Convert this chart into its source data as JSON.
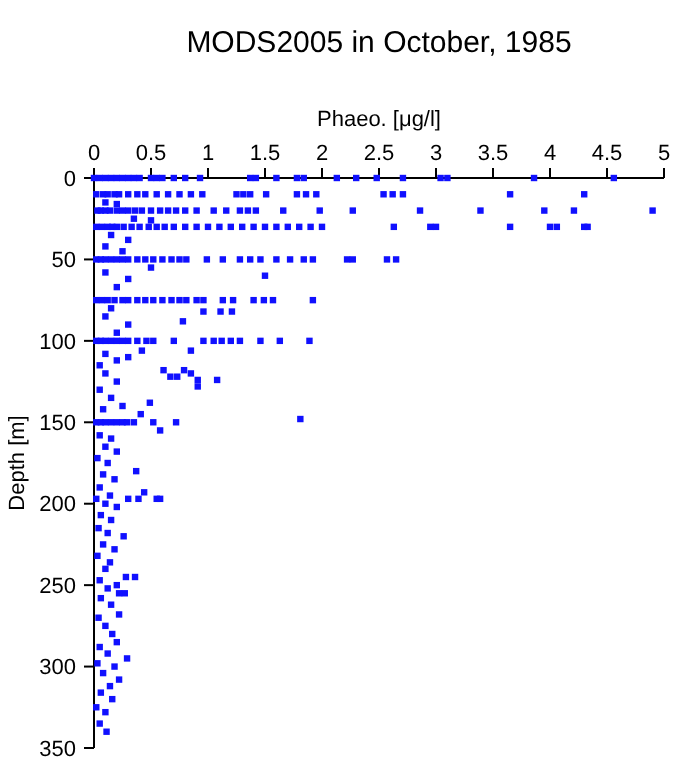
{
  "chart_data": {
    "type": "scatter",
    "title": "MODS2005 in October, 1985",
    "xlabel": "Phaeo. [μg/l]",
    "ylabel": "Depth [m]",
    "xlim": [
      0,
      5
    ],
    "xticks": [
      0,
      0.5,
      1,
      1.5,
      2,
      2.5,
      3,
      3.5,
      4,
      4.5,
      5
    ],
    "ylim": [
      350,
      0
    ],
    "yticks": [
      0,
      50,
      100,
      150,
      200,
      250,
      300,
      350
    ],
    "marker": "square",
    "series": [
      {
        "color": "#1010ff",
        "x": [
          0,
          0.05,
          0.1,
          0.15,
          0.2,
          0.25,
          0.3,
          0.35,
          0.4,
          0.5,
          0.55,
          0.6,
          0.7,
          0.8,
          0.93,
          1.37,
          1.42,
          1.6,
          1.78,
          1.84,
          2.13,
          2.3,
          2.48,
          2.71,
          3.04,
          3.1,
          3.86,
          4.56,
          0.02,
          0.08,
          0.12,
          0.18,
          0.22,
          0.3,
          0.38,
          0.45,
          0.55,
          0.65,
          0.75,
          0.85,
          0.95,
          1.25,
          1.31,
          1.37,
          1.51,
          1.78,
          1.86,
          1.95,
          2.54,
          2.62,
          2.71,
          3.65,
          4.3,
          0.03,
          0.06,
          0.1,
          0.14,
          0.2,
          0.25,
          0.3,
          0.36,
          0.42,
          0.5,
          0.58,
          0.65,
          0.72,
          0.8,
          0.9,
          1.05,
          1.16,
          1.28,
          1.35,
          1.42,
          1.66,
          1.98,
          2.27,
          2.86,
          3.39,
          3.95,
          4.21,
          4.9,
          0.02,
          0.07,
          0.12,
          0.16,
          0.2,
          0.26,
          0.33,
          0.4,
          0.48,
          0.55,
          0.62,
          0.7,
          0.8,
          0.9,
          1.0,
          1.1,
          1.2,
          1.3,
          1.4,
          1.5,
          1.6,
          1.7,
          1.8,
          1.9,
          2.0,
          2.63,
          2.95,
          3.0,
          3.65,
          4.0,
          4.06,
          4.3,
          4.33,
          0.1,
          0.2,
          0.35,
          0.5,
          0.15,
          0.3,
          0.1,
          0.25,
          0.02,
          0.06,
          0.1,
          0.15,
          0.2,
          0.25,
          0.3,
          0.38,
          0.45,
          0.52,
          0.6,
          0.68,
          0.75,
          0.81,
          0.99,
          1.13,
          1.28,
          1.37,
          1.46,
          1.6,
          1.72,
          1.84,
          1.92,
          2.22,
          2.27,
          2.57,
          2.65,
          0.1,
          0.3,
          0.5,
          0.2,
          1.5,
          0.02,
          0.07,
          0.12,
          0.18,
          0.25,
          0.3,
          0.38,
          0.45,
          0.52,
          0.6,
          0.68,
          0.75,
          0.81,
          0.9,
          0.96,
          1.13,
          1.22,
          1.4,
          1.49,
          1.57,
          1.92,
          0.96,
          1.11,
          1.21,
          0.78,
          0.1,
          0.3,
          0.2,
          0.15,
          0.02,
          0.06,
          0.1,
          0.15,
          0.2,
          0.25,
          0.3,
          0.38,
          0.46,
          0.52,
          0.7,
          0.96,
          1.05,
          1.12,
          1.2,
          1.28,
          1.46,
          1.63,
          1.89,
          0.42,
          0.85,
          0.1,
          0.2,
          0.05,
          0.3,
          0.61,
          0.79,
          0.85,
          0.91,
          1.08,
          0.67,
          0.73,
          0.91,
          0.49,
          0.41,
          1.81,
          0.1,
          0.2,
          0.05,
          0.15,
          0.25,
          0.08,
          0.02,
          0.06,
          0.1,
          0.15,
          0.2,
          0.25,
          0.29,
          0.35,
          0.52,
          0.72,
          0.58,
          0.05,
          0.15,
          0.1,
          0.2,
          0.03,
          0.12,
          0.37,
          0.08,
          0.18,
          0.05,
          0.44,
          0.14,
          0.02,
          0.1,
          0.3,
          0.39,
          0.55,
          0.58,
          0.2,
          0.06,
          0.15,
          0.26,
          0.04,
          0.12,
          0.08,
          0.18,
          0.03,
          0.14,
          0.1,
          0.36,
          0.28,
          0.05,
          0.2,
          0.12,
          0.27,
          0.22,
          0.06,
          0.15,
          0.22,
          0.04,
          0.1,
          0.16,
          0.2,
          0.05,
          0.29,
          0.12,
          0.03,
          0.18,
          0.08,
          0.22,
          0.14,
          0.06,
          0.16,
          0.02,
          0.1,
          0.05,
          0.11
        ],
        "values": [
          0,
          0,
          0,
          0,
          0,
          0,
          0,
          0,
          0,
          0,
          0,
          0,
          0,
          0,
          0,
          0,
          0,
          0,
          0,
          0,
          0,
          0,
          0,
          0,
          0,
          0,
          0,
          0,
          10,
          10,
          10,
          10,
          10,
          10,
          10,
          10,
          10,
          10,
          10,
          10,
          10,
          10,
          10,
          10,
          10,
          10,
          10,
          10,
          10,
          10,
          10,
          10,
          10,
          20,
          20,
          20,
          20,
          20,
          20,
          20,
          20,
          20,
          20,
          20,
          20,
          20,
          20,
          20,
          20,
          20,
          20,
          20,
          20,
          20,
          20,
          20,
          20,
          20,
          20,
          20,
          20,
          30,
          30,
          30,
          30,
          30,
          30,
          30,
          30,
          30,
          30,
          30,
          30,
          30,
          30,
          30,
          30,
          30,
          30,
          30,
          30,
          30,
          30,
          30,
          30,
          30,
          30,
          30,
          30,
          30,
          30,
          30,
          30,
          30,
          15,
          16,
          25,
          26,
          35,
          38,
          42,
          45,
          50,
          50,
          50,
          50,
          50,
          50,
          50,
          50,
          50,
          50,
          50,
          50,
          50,
          50,
          50,
          50,
          50,
          50,
          50,
          50,
          50,
          50,
          50,
          50,
          50,
          50,
          50,
          58,
          62,
          55,
          67,
          60,
          75,
          75,
          75,
          75,
          75,
          75,
          75,
          75,
          75,
          75,
          75,
          75,
          75,
          75,
          75,
          75,
          75,
          75,
          75,
          75,
          75,
          82,
          82,
          82,
          88,
          85,
          90,
          95,
          80,
          100,
          100,
          100,
          100,
          100,
          100,
          100,
          100,
          100,
          100,
          100,
          100,
          100,
          100,
          100,
          100,
          100,
          100,
          100,
          106,
          106,
          108,
          112,
          115,
          110,
          118,
          118,
          120,
          124,
          124,
          122,
          122,
          128,
          138,
          145,
          148,
          120,
          125,
          130,
          135,
          140,
          142,
          150,
          150,
          150,
          150,
          150,
          150,
          150,
          150,
          150,
          150,
          155,
          158,
          160,
          165,
          168,
          172,
          175,
          180,
          182,
          185,
          190,
          193,
          195,
          197,
          200,
          197,
          197,
          197,
          197,
          202,
          207,
          210,
          220,
          215,
          218,
          225,
          228,
          232,
          236,
          240,
          245,
          245,
          247,
          250,
          252,
          255,
          255,
          258,
          262,
          268,
          270,
          275,
          280,
          285,
          288,
          295,
          292,
          298,
          300,
          304,
          308,
          312,
          316,
          320,
          325,
          328,
          335,
          340
        ]
      }
    ]
  }
}
